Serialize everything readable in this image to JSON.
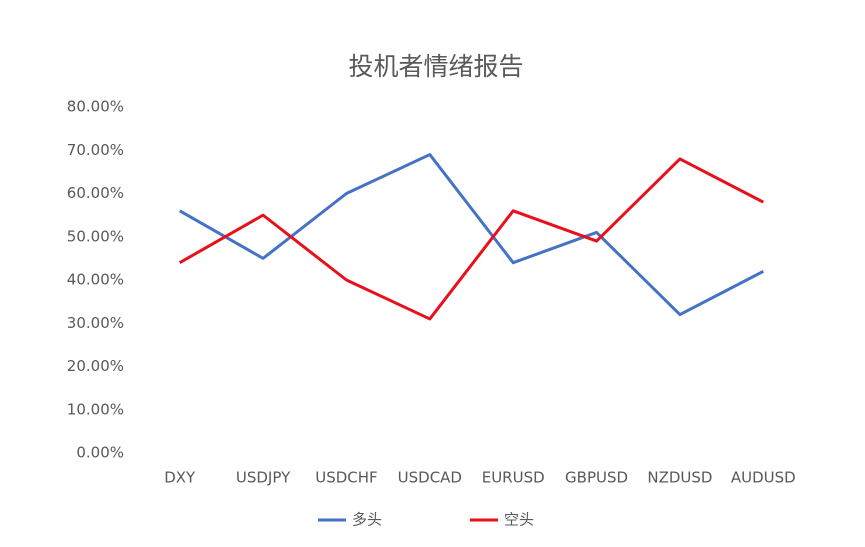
{
  "chart_data": {
    "type": "line",
    "title": "投机者情绪报告",
    "categories": [
      "DXY",
      "USDJPY",
      "USDCHF",
      "USDCAD",
      "EURUSD",
      "GBPUSD",
      "NZDUSD",
      "AUDUSD"
    ],
    "series": [
      {
        "name": "多头",
        "color": "#4472c4",
        "values": [
          56,
          45,
          60,
          69,
          44,
          51,
          32,
          42
        ]
      },
      {
        "name": "空头",
        "color": "#e8101a",
        "values": [
          44,
          55,
          40,
          31,
          56,
          49,
          68,
          58
        ]
      }
    ],
    "ylim": [
      0,
      80
    ],
    "yticks": [
      {
        "value": 0,
        "label": "0.00%"
      },
      {
        "value": 10,
        "label": "10.00%"
      },
      {
        "value": 20,
        "label": "20.00%"
      },
      {
        "value": 30,
        "label": "30.00%"
      },
      {
        "value": 40,
        "label": "40.00%"
      },
      {
        "value": 50,
        "label": "50.00%"
      },
      {
        "value": 60,
        "label": "60.00%"
      },
      {
        "value": 70,
        "label": "70.00%"
      },
      {
        "value": 80,
        "label": "80.00%"
      }
    ],
    "grid": false,
    "legend": "bottom"
  }
}
